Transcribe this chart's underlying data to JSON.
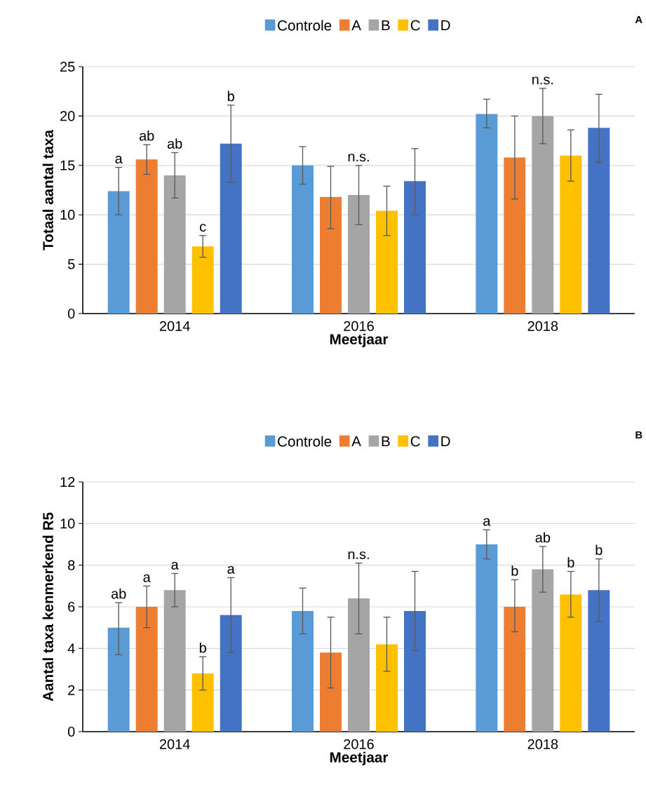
{
  "chart_data": [
    {
      "type": "bar",
      "categories": [
        "2014",
        "2016",
        "2018"
      ],
      "ylabel": "Totaal aantal taxa",
      "xlabel": "Meetjaar",
      "ylim": [
        0,
        25
      ],
      "yticks": [
        0,
        5,
        10,
        15,
        20,
        25
      ],
      "grid": "y",
      "legend": "top",
      "series": [
        {
          "name": "Controle",
          "color": "#5b9bd5",
          "values": [
            12.4,
            15,
            20.2
          ],
          "errors": [
            [
              10,
              14.8
            ],
            [
              13.1,
              16.9
            ],
            [
              18.8,
              21.7
            ]
          ]
        },
        {
          "name": "A",
          "color": "#ed7d31",
          "values": [
            15.6,
            11.8,
            15.8
          ],
          "errors": [
            [
              14.1,
              17.1
            ],
            [
              8.6,
              14.9
            ],
            [
              11.6,
              20
            ]
          ]
        },
        {
          "name": "B",
          "color": "#a5a5a5",
          "values": [
            14,
            12,
            20
          ],
          "errors": [
            [
              11.7,
              16.3
            ],
            [
              9,
              15
            ],
            [
              17.2,
              22.8
            ]
          ]
        },
        {
          "name": "C",
          "color": "#ffc000",
          "values": [
            6.8,
            10.4,
            16
          ],
          "errors": [
            [
              5.7,
              7.9
            ],
            [
              7.9,
              12.9
            ],
            [
              13.4,
              18.6
            ]
          ]
        },
        {
          "name": "D",
          "color": "#4472c4",
          "values": [
            17.2,
            13.4,
            18.8
          ],
          "errors": [
            [
              13.3,
              21.1
            ],
            [
              10,
              16.7
            ],
            [
              15.3,
              22.2
            ]
          ]
        }
      ],
      "annotations": [
        "A",
        "a",
        "ab",
        "ab",
        "c",
        "b",
        "n.s.",
        "n.s."
      ]
    },
    {
      "type": "bar",
      "categories": [
        "2014",
        "2016",
        "2018"
      ],
      "ylabel": "Aantal taxa kenmerkend R5",
      "xlabel": "Meetjaar",
      "ylim": [
        0,
        12
      ],
      "yticks": [
        0,
        2,
        4,
        6,
        8,
        10,
        12
      ],
      "grid": "y",
      "legend": "top",
      "series": [
        {
          "name": "Controle",
          "color": "#5b9bd5",
          "values": [
            5,
            5.8,
            9
          ],
          "errors": [
            [
              3.7,
              6.2
            ],
            [
              4.7,
              6.9
            ],
            [
              8.3,
              9.7
            ]
          ]
        },
        {
          "name": "A",
          "color": "#ed7d31",
          "values": [
            6,
            3.8,
            6
          ],
          "errors": [
            [
              5,
              7
            ],
            [
              2.1,
              5.5
            ],
            [
              4.8,
              7.3
            ]
          ]
        },
        {
          "name": "B",
          "color": "#a5a5a5",
          "values": [
            6.8,
            6.4,
            7.8
          ],
          "errors": [
            [
              6,
              7.6
            ],
            [
              4.7,
              8.1
            ],
            [
              6.7,
              8.9
            ]
          ]
        },
        {
          "name": "C",
          "color": "#ffc000",
          "values": [
            2.8,
            4.2,
            6.6
          ],
          "errors": [
            [
              2,
              3.6
            ],
            [
              2.9,
              5.5
            ],
            [
              5.5,
              7.7
            ]
          ]
        },
        {
          "name": "D",
          "color": "#4472c4",
          "values": [
            5.6,
            5.8,
            6.8
          ],
          "errors": [
            [
              3.8,
              7.4
            ],
            [
              3.9,
              7.7
            ],
            [
              5.3,
              8.3
            ]
          ]
        }
      ],
      "annotations": [
        "B",
        "ab",
        "a",
        "a",
        "b",
        "a",
        "n.s.",
        "a",
        "b",
        "ab",
        "b",
        "b"
      ]
    }
  ]
}
